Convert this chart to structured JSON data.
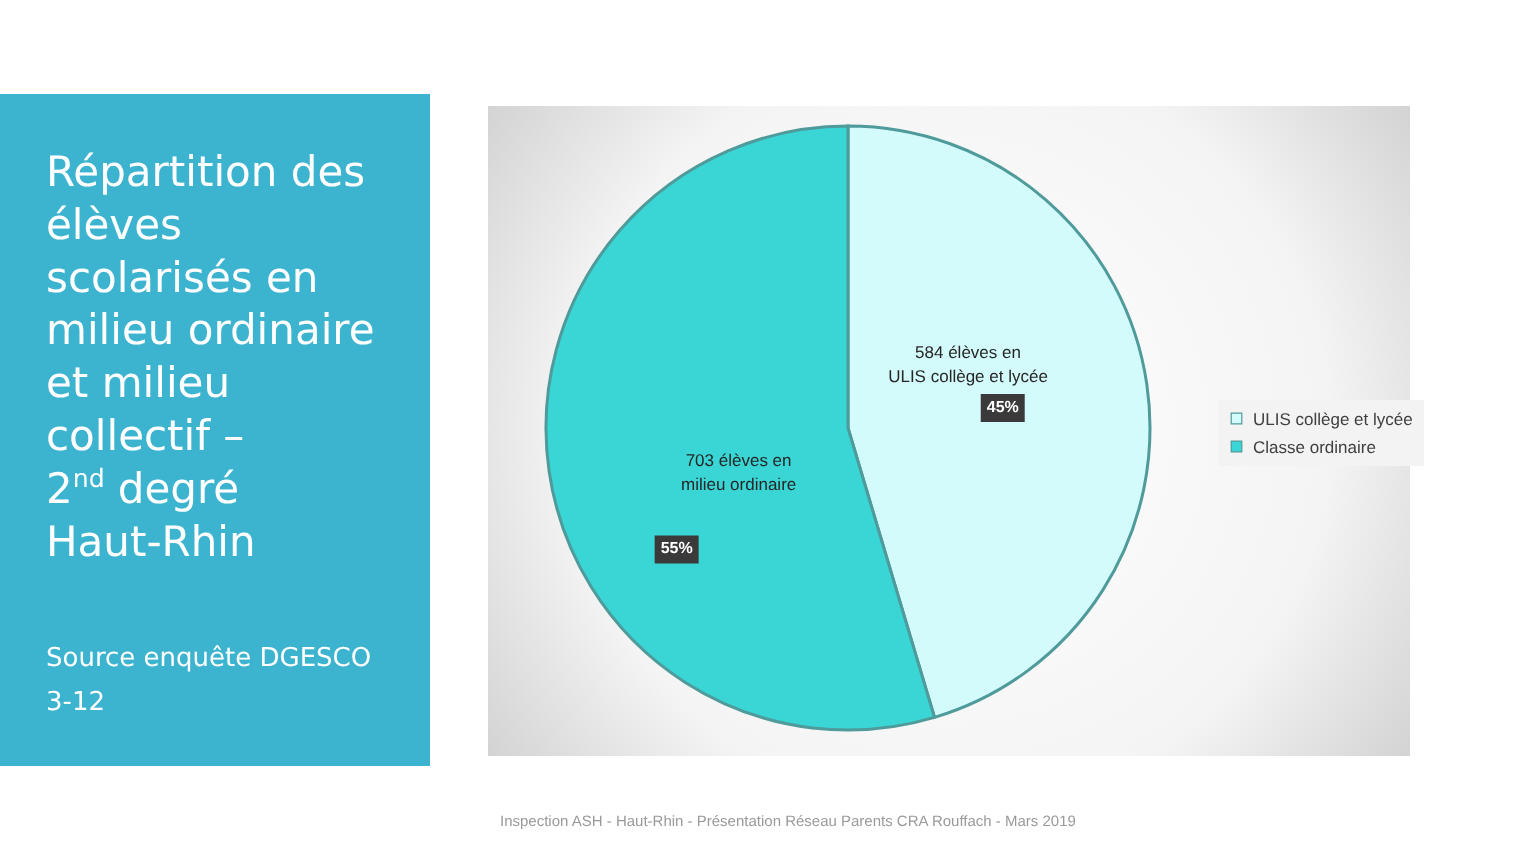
{
  "chart_data": {
    "type": "pie",
    "title": "Répartition des\nélèves\nscolarisés en\nmilieu ordinaire\net milieu\ncollectif –\n2$^{nd}$ degré\nHaut-Rhin",
    "categories": [
      "ULIS collège et lycée",
      "Classe ordinaire"
    ],
    "values": [
      584,
      703
    ],
    "colors": [
      "#d4fbfb",
      "#3ad5d5"
    ],
    "value_labels": [
      "584 élèves en\nULIS collège et lycée",
      "703 élèves en\nmilieu ordinaire"
    ],
    "annotations": [
      {
        "text": "45%",
        "x": "ULIS collège et lycée"
      },
      {
        "text": "55%",
        "x": "Classe ordinaire"
      },
      "Source enquête DGESCO\n3-12",
      "Inspection ASH - Haut-Rhin - Présentation Réseau Parents CRA Rouffach - Mars 2019"
    ],
    "legend": "right"
  }
}
